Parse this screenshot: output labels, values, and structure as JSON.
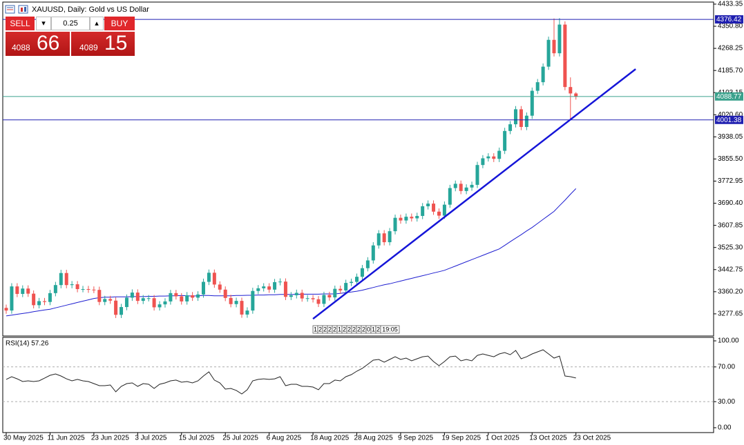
{
  "header": {
    "title": "XAUUSD, Daily: Gold vs US Dollar"
  },
  "trade_panel": {
    "sell": "SELL",
    "buy": "BUY",
    "volume": 0.25,
    "sell_price_main": 4088,
    "sell_price_pips": 66,
    "buy_price_main": 4089,
    "buy_price_pips": 15
  },
  "chart_data": [
    {
      "type": "candlestick",
      "categories": [
        "30 May 2025",
        null,
        null,
        null,
        null,
        null,
        null,
        null,
        "11 Jun 2025",
        null,
        null,
        null,
        null,
        null,
        null,
        null,
        "23 Jun 2025",
        null,
        null,
        null,
        null,
        null,
        null,
        null,
        "3 Jul 2025",
        null,
        null,
        null,
        null,
        null,
        null,
        null,
        "15 Jul 2025",
        null,
        null,
        null,
        null,
        null,
        null,
        null,
        "25 Jul 2025",
        null,
        null,
        null,
        null,
        null,
        null,
        null,
        "6 Aug 2025",
        null,
        null,
        null,
        null,
        null,
        null,
        null,
        "18 Aug 2025",
        null,
        null,
        null,
        null,
        null,
        null,
        null,
        "28 Aug 2025",
        null,
        null,
        null,
        null,
        null,
        null,
        null,
        "9 Sep 2025",
        null,
        null,
        null,
        null,
        null,
        null,
        null,
        "19 Sep 2025",
        null,
        null,
        null,
        null,
        null,
        null,
        null,
        "1 Oct 2025",
        null,
        null,
        null,
        null,
        null,
        null,
        null,
        "13 Oct 2025",
        null,
        null,
        null,
        null,
        null,
        null,
        null,
        "23 Oct 2025"
      ],
      "open": [
        3300,
        3290,
        3380,
        3352,
        3372,
        3353,
        3310,
        3325,
        3322,
        3355,
        3385,
        3430,
        3385,
        3388,
        3370,
        3370,
        3368,
        3367,
        3322,
        3333,
        3327,
        3274,
        3303,
        3338,
        3357,
        3326,
        3336,
        3336,
        3302,
        3313,
        3324,
        3355,
        3343,
        3324,
        3347,
        3338,
        3350,
        3397,
        3431,
        3387,
        3368,
        3337,
        3314,
        3326,
        3275,
        3290,
        3363,
        3373,
        3380,
        3368,
        3396,
        3398,
        3341,
        3347,
        3356,
        3335,
        3336,
        3332,
        3315,
        3348,
        3339,
        3371,
        3365,
        3393,
        3397,
        3416,
        3448,
        3477,
        3533,
        3578,
        3545,
        3586,
        3636,
        3626,
        3640,
        3634,
        3643,
        3679,
        3689,
        3659,
        3644,
        3685,
        3747,
        3763,
        3736,
        3749,
        3759,
        3833,
        3858,
        3865,
        3856,
        3886,
        3960,
        3985,
        4041,
        3975,
        4017,
        4110,
        4142,
        4200,
        4300,
        4250,
        4357,
        4124,
        4100
      ],
      "high": [
        3312,
        3392,
        3392,
        3384,
        3384,
        3365,
        3337,
        3337,
        3367,
        3397,
        3442,
        3442,
        3400,
        3400,
        3382,
        3382,
        3380,
        3379,
        3345,
        3345,
        3339,
        3315,
        3350,
        3369,
        3369,
        3348,
        3348,
        3348,
        3325,
        3336,
        3367,
        3367,
        3355,
        3359,
        3359,
        3362,
        3409,
        3443,
        3443,
        3399,
        3380,
        3349,
        3338,
        3338,
        3302,
        3375,
        3385,
        3392,
        3392,
        3408,
        3410,
        3410,
        3359,
        3368,
        3368,
        3348,
        3348,
        3344,
        3360,
        3360,
        3383,
        3383,
        3405,
        3409,
        3428,
        3460,
        3489,
        3545,
        3590,
        3590,
        3598,
        3648,
        3648,
        3652,
        3652,
        3655,
        3691,
        3701,
        3701,
        3671,
        3697,
        3759,
        3775,
        3775,
        3761,
        3771,
        3845,
        3870,
        3877,
        3877,
        3898,
        3972,
        3997,
        4053,
        4053,
        4029,
        4122,
        4154,
        4212,
        4312,
        4380,
        4381,
        4369,
        4160,
        4105
      ],
      "low": [
        3278,
        3278,
        3340,
        3340,
        3341,
        3298,
        3298,
        3310,
        3310,
        3343,
        3373,
        3373,
        3373,
        3358,
        3358,
        3356,
        3355,
        3310,
        3310,
        3315,
        3262,
        3262,
        3291,
        3326,
        3314,
        3314,
        3324,
        3290,
        3290,
        3301,
        3312,
        3331,
        3312,
        3312,
        3326,
        3326,
        3338,
        3385,
        3375,
        3356,
        3325,
        3302,
        3302,
        3263,
        3263,
        3278,
        3351,
        3361,
        3356,
        3356,
        3384,
        3329,
        3329,
        3335,
        3323,
        3323,
        3320,
        3303,
        3303,
        3327,
        3327,
        3353,
        3353,
        3381,
        3385,
        3404,
        3436,
        3465,
        3521,
        3533,
        3533,
        3574,
        3614,
        3614,
        3622,
        3622,
        3631,
        3667,
        3647,
        3632,
        3632,
        3673,
        3735,
        3724,
        3724,
        3737,
        3747,
        3821,
        3846,
        3844,
        3844,
        3874,
        3948,
        3973,
        3963,
        3963,
        4005,
        4098,
        4130,
        4188,
        4238,
        4238,
        4112,
        4004,
        4077
      ],
      "close": [
        3290,
        3380,
        3352,
        3372,
        3353,
        3310,
        3325,
        3322,
        3355,
        3385,
        3430,
        3385,
        3388,
        3370,
        3370,
        3368,
        3367,
        3322,
        3333,
        3327,
        3274,
        3303,
        3338,
        3357,
        3326,
        3336,
        3336,
        3302,
        3313,
        3324,
        3355,
        3343,
        3324,
        3347,
        3338,
        3350,
        3397,
        3431,
        3387,
        3368,
        3337,
        3314,
        3326,
        3275,
        3290,
        3363,
        3373,
        3380,
        3368,
        3396,
        3398,
        3341,
        3347,
        3356,
        3335,
        3336,
        3332,
        3315,
        3348,
        3339,
        3371,
        3365,
        3393,
        3397,
        3416,
        3448,
        3477,
        3533,
        3578,
        3545,
        3586,
        3636,
        3626,
        3640,
        3634,
        3643,
        3679,
        3689,
        3659,
        3644,
        3685,
        3747,
        3763,
        3736,
        3749,
        3759,
        3833,
        3858,
        3865,
        3856,
        3886,
        3960,
        3985,
        4041,
        3975,
        4017,
        4110,
        4142,
        4200,
        4300,
        4250,
        4357,
        4124,
        4100,
        4089
      ],
      "up_color": "#26a69a",
      "down_color": "#ef5350",
      "ma": {
        "color": "#1c1cd0",
        "values": [
          3270,
          3273,
          3276,
          3279,
          3282,
          3286,
          3289,
          3292,
          3295,
          3300,
          3305,
          3310,
          3315,
          3320,
          3325,
          3330,
          3335,
          3338,
          3340,
          3340,
          3341,
          3341,
          3341,
          3342,
          3342,
          3342,
          3343,
          3343,
          3344,
          3344,
          3345,
          3345,
          3346,
          3345,
          3344,
          3345,
          3346,
          3346,
          3345,
          3345,
          3345,
          3345,
          3346,
          3346,
          3347,
          3347,
          3348,
          3348,
          3349,
          3349,
          3350,
          3350,
          3350,
          3350,
          3351,
          3351,
          3351,
          3351,
          3352,
          3352,
          3352,
          3354,
          3357,
          3359,
          3362,
          3366,
          3371,
          3376,
          3381,
          3386,
          3390,
          3395,
          3400,
          3405,
          3410,
          3415,
          3420,
          3425,
          3430,
          3435,
          3440,
          3448,
          3456,
          3464,
          3472,
          3480,
          3488,
          3496,
          3504,
          3512,
          3520,
          3533,
          3547,
          3560,
          3573,
          3587,
          3600,
          3615,
          3630,
          3645,
          3660,
          3681,
          3702,
          3724,
          3745
        ]
      },
      "ylim": [
        3195,
        4441
      ],
      "yticks": [
        4433.35,
        {
          "value": 4350.8,
          "label": "4350.80"
        },
        4268.25,
        {
          "value": 4185.7,
          "label": "4185.70"
        },
        4103.15,
        {
          "value": 4020.6,
          "label": "4020.60"
        },
        3938.05,
        {
          "value": 3855.5,
          "label": "3855.50"
        },
        3772.95,
        {
          "value": 3690.4,
          "label": "3690.40"
        },
        3607.85,
        {
          "value": 3525.3,
          "label": "3525.30"
        },
        3442.75,
        {
          "value": 3360.2,
          "label": "3360.20"
        },
        3277.65
      ],
      "hlines": [
        {
          "value": 4376.42,
          "color": "#1f1fb0"
        },
        {
          "value": 4088.77,
          "color": "#3aa18c"
        },
        {
          "value": 4001.38,
          "color": "#1f1fb0"
        }
      ],
      "trendline": {
        "x": [
          56,
          114.9
        ],
        "y": [
          3259,
          4191
        ],
        "color": "#1515d8"
      },
      "trade_markers": [
        "1",
        "2",
        "2",
        "2",
        "2",
        "1",
        "2",
        "2",
        "2",
        "2",
        "2",
        "0",
        "1",
        "2",
        "19:05"
      ]
    },
    {
      "type": "line",
      "title": "RSI(14) 57.26",
      "color": "#222222",
      "values": [
        55.6,
        58.7,
        56.3,
        53.2,
        54.0,
        53.2,
        54.0,
        57.1,
        60.3,
        61.9,
        59.5,
        56.3,
        54.0,
        55.6,
        54.0,
        53.2,
        50.8,
        48.4,
        48.4,
        49.2,
        41.3,
        47.6,
        50.8,
        51.6,
        47.6,
        50.8,
        50.0,
        45.2,
        50.0,
        51.6,
        54.0,
        54.8,
        52.4,
        53.2,
        51.6,
        54.0,
        59.5,
        64.3,
        54.8,
        51.6,
        44.4,
        45.2,
        42.9,
        38.9,
        43.7,
        54.0,
        55.6,
        56.3,
        55.6,
        56.3,
        58.7,
        48.4,
        50.0,
        50.0,
        47.6,
        47.6,
        46.8,
        43.7,
        50.8,
        50.8,
        54.8,
        54.0,
        58.7,
        61.1,
        65.1,
        68.3,
        73.0,
        77.8,
        78.6,
        75.4,
        78.6,
        81.7,
        78.6,
        80.2,
        77.0,
        79.4,
        81.7,
        82.5,
        76.2,
        71.4,
        76.2,
        81.7,
        82.5,
        77.0,
        78.6,
        77.0,
        83.3,
        84.9,
        83.3,
        81.7,
        84.9,
        86.5,
        84.1,
        88.9,
        79.4,
        81.7,
        84.9,
        87.3,
        89.7,
        84.9,
        80.2,
        82.5,
        59.5,
        58.7,
        57.26
      ],
      "ylim": [
        -5.6,
        104
      ],
      "yticks": [
        {
          "value": 100,
          "label": "100.00"
        },
        {
          "value": 70,
          "label": "70.00"
        },
        {
          "value": 30,
          "label": "30.00"
        },
        {
          "value": 0,
          "label": "0.00"
        }
      ],
      "levels": [
        70,
        30
      ]
    }
  ]
}
